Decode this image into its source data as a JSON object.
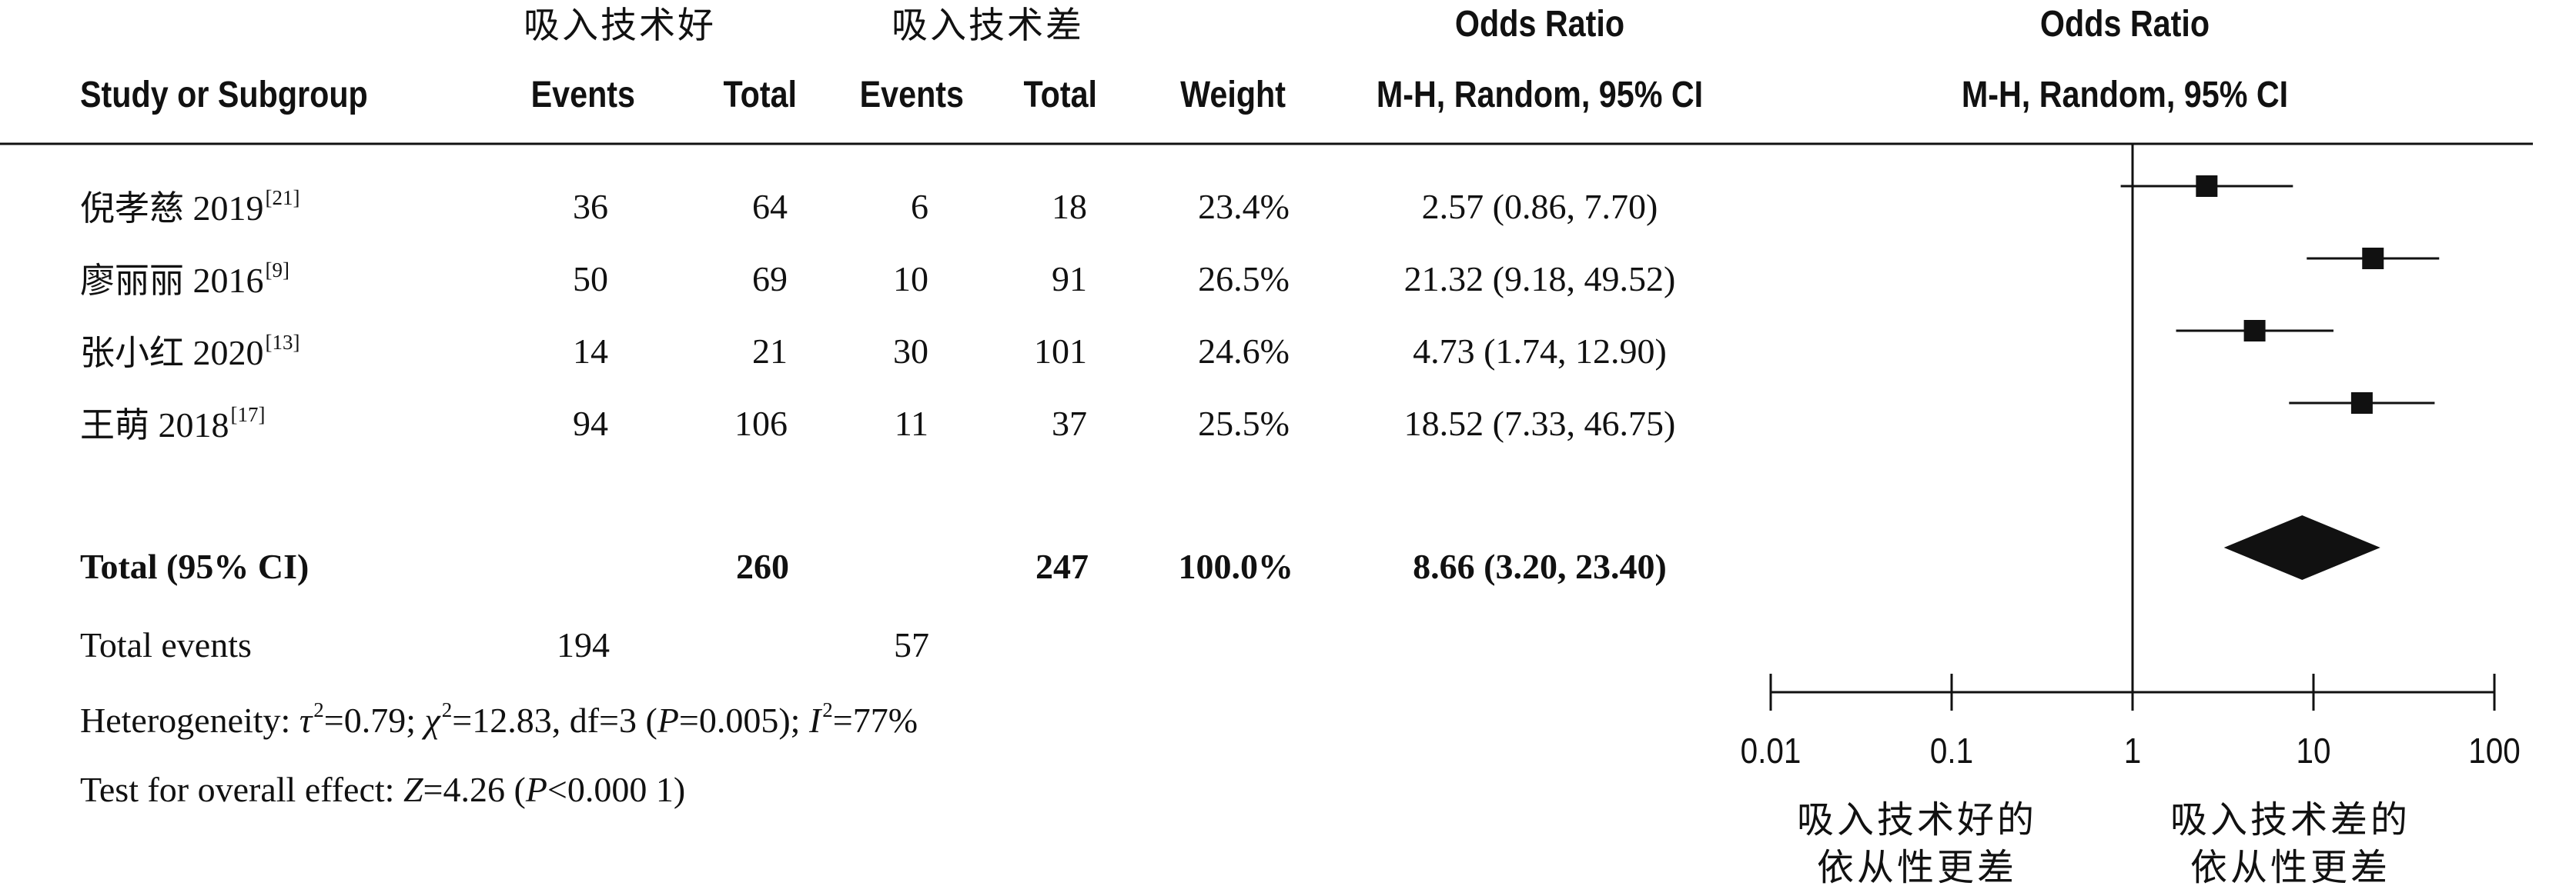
{
  "header": {
    "group1_label": "吸入技术好",
    "group2_label": "吸入技术差",
    "or_title": "Odds Ratio",
    "or_method": "M-H, Random, 95% CI",
    "plot_title": "Odds Ratio",
    "plot_method": "M-H, Random, 95% CI",
    "study_label": "Study or Subgroup",
    "events1_label": "Events",
    "total1_label": "Total",
    "events2_label": "Events",
    "total2_label": "Total",
    "weight_label": "Weight"
  },
  "studies": [
    {
      "name": "倪孝慈",
      "year": "2019",
      "ref": "[21]",
      "events1": "36",
      "total1": "64",
      "events2": "6",
      "total2": "18",
      "weight": "23.4%",
      "ci_text": "2.57 (0.86, 7.70)"
    },
    {
      "name": "廖丽丽",
      "year": "2016",
      "ref": "[9]",
      "events1": "50",
      "total1": "69",
      "events2": "10",
      "total2": "91",
      "weight": "26.5%",
      "ci_text": "21.32 (9.18, 49.52)"
    },
    {
      "name": "张小红",
      "year": "2020",
      "ref": "[13]",
      "events1": "14",
      "total1": "21",
      "events2": "30",
      "total2": "101",
      "weight": "24.6%",
      "ci_text": "4.73 (1.74, 12.90)"
    },
    {
      "name": "王萌",
      "year": "2018",
      "ref": "[17]",
      "events1": "94",
      "total1": "106",
      "events2": "11",
      "total2": "37",
      "weight": "25.5%",
      "ci_text": "18.52 (7.33, 46.75)"
    }
  ],
  "total": {
    "label": "Total (95% CI)",
    "total1": "260",
    "total2": "247",
    "weight": "100.0%",
    "ci_text": "8.66 (3.20, 23.40)"
  },
  "total_events": {
    "label": "Total events",
    "events1": "194",
    "events2": "57"
  },
  "heterogeneity": {
    "prefix": "Heterogeneity: ",
    "tau_sym": "τ",
    "tau_val": "=0.79; ",
    "chi_sym": "χ",
    "chi_val": "=12.83, df=3 (",
    "p_sym": "P",
    "p_val": "=0.005); ",
    "i_sym": "I",
    "i_val": "=77%",
    "squared": "2"
  },
  "overall_effect": {
    "prefix": "Test for overall effect: ",
    "z_sym": "Z",
    "z_val": "=4.26 (",
    "p_sym": "P",
    "p_val": "<0.000 1)"
  },
  "axis": {
    "ticks": [
      "0.01",
      "0.1",
      "1",
      "10",
      "100"
    ],
    "favours_left": "吸入技术好的\n依从性更差",
    "favours_right": "吸入技术差的\n依从性更差"
  },
  "chart_data": {
    "type": "forest",
    "x_scale": "log",
    "xlim": [
      0.01,
      100
    ],
    "reference_line": 1,
    "colors": {
      "marker": "#111111"
    },
    "studies": [
      {
        "label": "倪孝慈 2019",
        "or": 2.57,
        "lower": 0.86,
        "upper": 7.7,
        "weight": 23.4
      },
      {
        "label": "廖丽丽 2016",
        "or": 21.32,
        "lower": 9.18,
        "upper": 49.52,
        "weight": 26.5
      },
      {
        "label": "张小红 2020",
        "or": 4.73,
        "lower": 1.74,
        "upper": 12.9,
        "weight": 24.6
      },
      {
        "label": "王萌 2018",
        "or": 18.52,
        "lower": 7.33,
        "upper": 46.75,
        "weight": 25.5
      }
    ],
    "pooled": {
      "label": "Total (95% CI)",
      "or": 8.66,
      "lower": 3.2,
      "upper": 23.4
    }
  }
}
